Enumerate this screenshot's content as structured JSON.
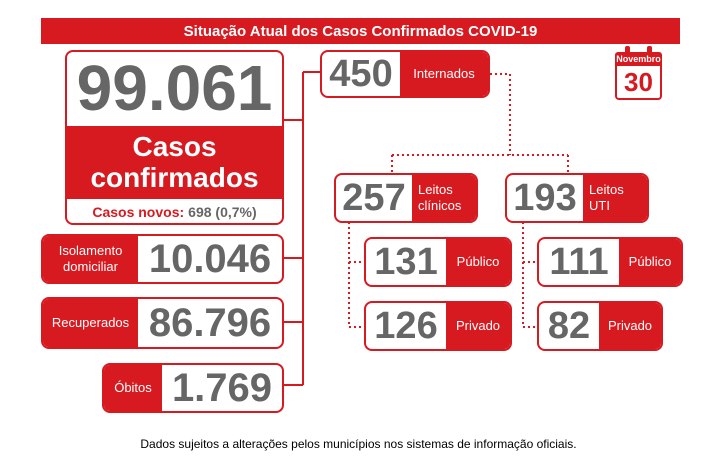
{
  "header": {
    "title": "Situação Atual dos Casos Confirmados COVID-19"
  },
  "calendar": {
    "month": "Novembro",
    "day": "30"
  },
  "confirmed": {
    "value": "99.061",
    "label_line1": "Casos",
    "label_line2": "confirmados",
    "new_label": "Casos novos:",
    "new_value": "698 (0,7%)"
  },
  "home_isolation": {
    "label_line1": "Isolamento",
    "label_line2": "domiciliar",
    "value": "10.046"
  },
  "recovered": {
    "label": "Recuperados",
    "value": "86.796"
  },
  "deaths": {
    "label": "Óbitos",
    "value": "1.769"
  },
  "hospitalized": {
    "value": "450",
    "label": "Internados"
  },
  "clinical_beds": {
    "value": "257",
    "label_line1": "Leitos",
    "label_line2": "clínicos",
    "public": {
      "value": "131",
      "label": "Público"
    },
    "private": {
      "value": "126",
      "label": "Privado"
    }
  },
  "icu_beds": {
    "value": "193",
    "label_line1": "Leitos",
    "label_line2": "UTI",
    "public": {
      "value": "111",
      "label": "Público"
    },
    "private": {
      "value": "82",
      "label": "Privado"
    }
  },
  "footer": {
    "note": "Dados sujeitos a alterações pelos municípios nos sistemas de informação oficiais."
  },
  "colors": {
    "accent": "#d71920",
    "number": "#666666"
  }
}
